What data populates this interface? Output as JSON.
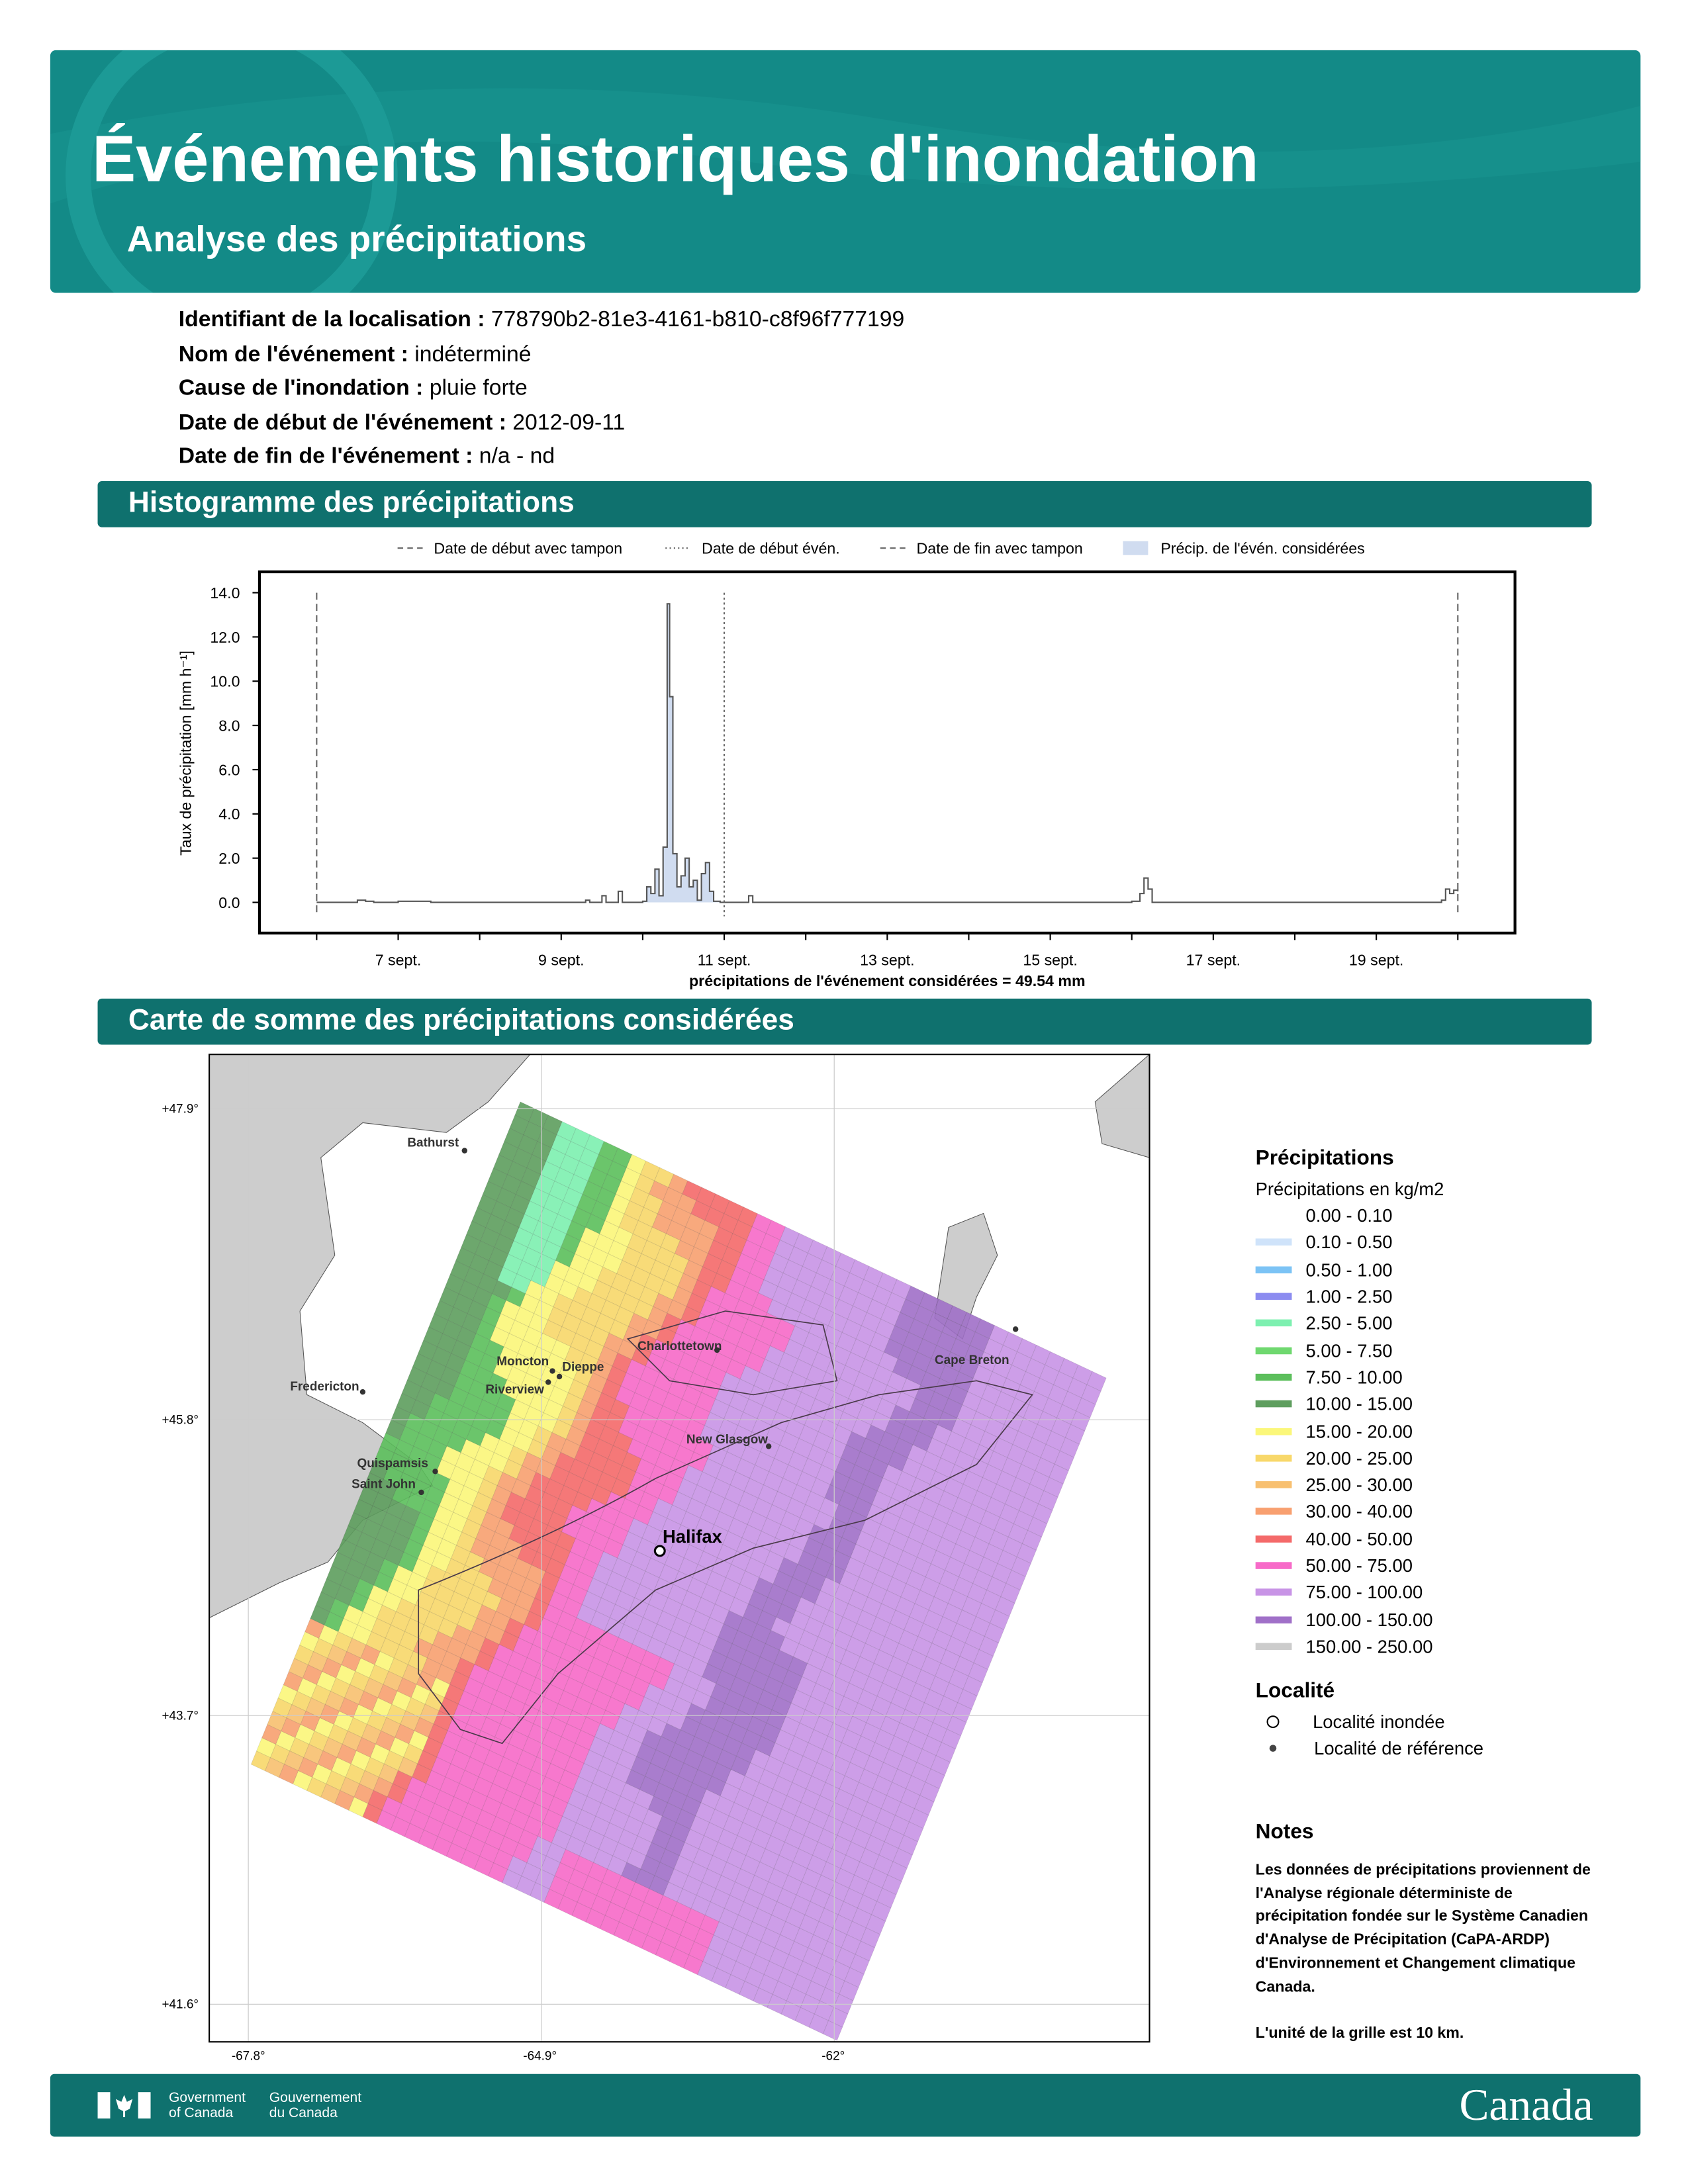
{
  "header": {
    "title": "Événements historiques d'inondation",
    "subtitle": "Analyse des précipitations"
  },
  "info": [
    {
      "label": "Identifiant de la localisation :",
      "value": "778790b2-81e3-4161-b810-c8f96f777199"
    },
    {
      "label": "Nom de l'événement :",
      "value": "indéterminé"
    },
    {
      "label": "Cause de l'inondation :",
      "value": "pluie forte"
    },
    {
      "label": "Date de début de l'événement :",
      "value": "2012-09-11"
    },
    {
      "label": "Date de fin de l'événement :",
      "value": "n/a - nd"
    }
  ],
  "sections": {
    "histogram": "Histogramme des précipitations",
    "map": "Carte de somme des précipitations considérées"
  },
  "chart_data": {
    "type": "area",
    "legend": [
      "Date de début avec tampon",
      "Date de début évén.",
      "Date de fin avec tampon",
      "Précip. de l'évén. considérées"
    ],
    "ylabel": "Taux de précipitation [mm h⁻¹]",
    "xlabel": "précipitations de l'événement considérées = 49.54 mm",
    "ylim": [
      -1,
      14.5
    ],
    "yticks": [
      "0.0",
      "2.0",
      "4.0",
      "6.0",
      "8.0",
      "10.0",
      "12.0",
      "14.0"
    ],
    "xticks": [
      {
        "day": 7,
        "label": "7 sept."
      },
      {
        "day": 9,
        "label": "9 sept."
      },
      {
        "day": 11,
        "label": "11 sept."
      },
      {
        "day": 13,
        "label": "13 sept."
      },
      {
        "day": 15,
        "label": "15 sept."
      },
      {
        "day": 17,
        "label": "17 sept."
      },
      {
        "day": 19,
        "label": "19 sept."
      }
    ],
    "xlim": [
      5.3,
      21.2
    ],
    "buffer_start_day": 6.0,
    "event_start_day": 11.0,
    "buffer_end_day": 20.0,
    "series": [
      [
        6.0,
        0
      ],
      [
        6.5,
        0.1
      ],
      [
        6.6,
        0.05
      ],
      [
        6.7,
        0
      ],
      [
        7.0,
        0.05
      ],
      [
        7.3,
        0.05
      ],
      [
        7.4,
        0
      ],
      [
        8.9,
        0
      ],
      [
        9.3,
        0.1
      ],
      [
        9.35,
        0
      ],
      [
        9.5,
        0.3
      ],
      [
        9.55,
        0
      ],
      [
        9.7,
        0.5
      ],
      [
        9.75,
        0
      ],
      [
        10.0,
        0.05
      ],
      [
        10.05,
        0.7
      ],
      [
        10.1,
        0.4
      ],
      [
        10.15,
        1.5
      ],
      [
        10.2,
        0.3
      ],
      [
        10.25,
        2.5
      ],
      [
        10.3,
        13.5
      ],
      [
        10.33,
        9.3
      ],
      [
        10.37,
        2.2
      ],
      [
        10.42,
        0.7
      ],
      [
        10.47,
        1.2
      ],
      [
        10.52,
        2.0
      ],
      [
        10.57,
        0.7
      ],
      [
        10.62,
        1.0
      ],
      [
        10.67,
        0.1
      ],
      [
        10.72,
        1.3
      ],
      [
        10.77,
        1.8
      ],
      [
        10.82,
        0.5
      ],
      [
        10.87,
        0.05
      ],
      [
        10.95,
        0
      ],
      [
        11.3,
        0.3
      ],
      [
        11.35,
        0
      ],
      [
        16.0,
        0.05
      ],
      [
        16.1,
        0.4
      ],
      [
        16.15,
        1.1
      ],
      [
        16.2,
        0.6
      ],
      [
        16.25,
        0
      ],
      [
        19.8,
        0.1
      ],
      [
        19.85,
        0.6
      ],
      [
        19.9,
        0.4
      ],
      [
        19.95,
        0.55
      ],
      [
        20.0,
        0.5
      ]
    ]
  },
  "map": {
    "lat_labels": [
      "+47.9°",
      "+45.8°",
      "+43.7°",
      "+41.6°"
    ],
    "lon_labels": [
      "-67.8°",
      "-64.9°",
      "-62°"
    ],
    "places": [
      {
        "name": "Bathurst"
      },
      {
        "name": "Moncton"
      },
      {
        "name": "Dieppe"
      },
      {
        "name": "Riverview"
      },
      {
        "name": "Fredericton"
      },
      {
        "name": "Quispamsis"
      },
      {
        "name": "Saint John"
      },
      {
        "name": "Charlottetown"
      },
      {
        "name": "New Glasgow"
      },
      {
        "name": "Cape Breton"
      },
      {
        "name": "Halifax"
      }
    ]
  },
  "legend": {
    "title": "Précipitations",
    "subtitle": "Précipitations en kg/m2",
    "classes": [
      {
        "label": "0.00 - 0.10",
        "color": "#ffffff"
      },
      {
        "label": "0.10 - 0.50",
        "color": "#cfe3fa"
      },
      {
        "label": "0.50 - 1.00",
        "color": "#7cc3f5"
      },
      {
        "label": "1.00 - 2.50",
        "color": "#8c8cf0"
      },
      {
        "label": "2.50 - 5.00",
        "color": "#7df0b0"
      },
      {
        "label": "5.00 - 7.50",
        "color": "#6fd86f"
      },
      {
        "label": "7.50 - 10.00",
        "color": "#5cbf5c"
      },
      {
        "label": "10.00 - 15.00",
        "color": "#5e9e5e"
      },
      {
        "label": "15.00 - 20.00",
        "color": "#fbf77a"
      },
      {
        "label": "20.00 - 25.00",
        "color": "#f8d86a"
      },
      {
        "label": "25.00 - 30.00",
        "color": "#f8c070"
      },
      {
        "label": "30.00 - 40.00",
        "color": "#f8a070"
      },
      {
        "label": "40.00 - 50.00",
        "color": "#f46a6a"
      },
      {
        "label": "50.00 - 75.00",
        "color": "#f76ac8"
      },
      {
        "label": "75.00 - 100.00",
        "color": "#c894e6"
      },
      {
        "label": "100.00 - 150.00",
        "color": "#a070c8"
      },
      {
        "label": "150.00 - 250.00",
        "color": "#cccccc"
      }
    ],
    "loc_title": "Localité",
    "loc_flooded": "Localité inondée",
    "loc_reference": "Localité de référence"
  },
  "notes": {
    "title": "Notes",
    "text": "Les données de précipitations proviennent de l'Analyse régionale déterministe de précipitation fondée sur le Système Canadien d'Analyse de Précipitation (CaPA-ARDP) d'Environnement et Changement climatique Canada.",
    "grid": "L'unité de la grille est 10 km."
  },
  "footer": {
    "gov_en": "Government of Canada",
    "gov_fr": "Gouvernement du Canada",
    "wordmark": "Canada"
  }
}
